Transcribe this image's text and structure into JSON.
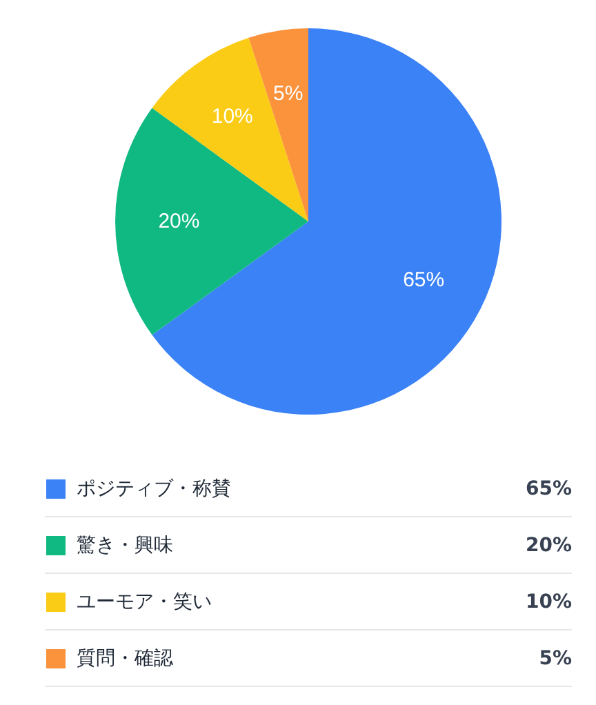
{
  "chart_data": {
    "type": "pie",
    "categories": [
      "ポジティブ・称賛",
      "驚き・興味",
      "ユーモア・笑い",
      "質問・確認"
    ],
    "values": [
      65,
      20,
      10,
      5
    ],
    "colors": [
      "#3b82f6",
      "#10b981",
      "#facc15",
      "#fb923c"
    ],
    "value_labels": [
      "65%",
      "20%",
      "10%",
      "5%"
    ],
    "legend": "bottom"
  }
}
